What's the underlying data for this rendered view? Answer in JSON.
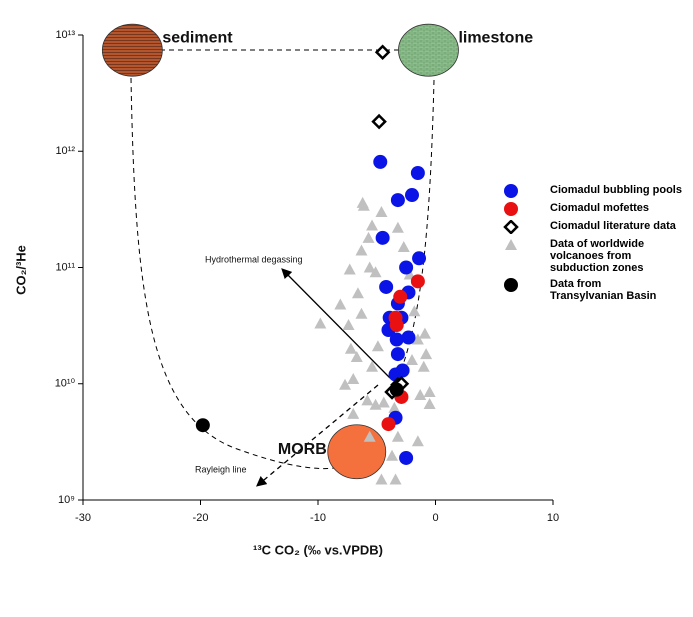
{
  "chart_data": {
    "type": "scatter",
    "x_label": "¹³C CO₂ (‰ vs.VPDB)",
    "y_label": "CO₂/³He",
    "xlim": [
      -30,
      10
    ],
    "xticks": [
      -30,
      -20,
      -10,
      0,
      10
    ],
    "ylim": [
      1000000000,
      10000000000000
    ],
    "yticks": [
      {
        "value": 1000000000,
        "label": "10⁹"
      },
      {
        "value": 10000000000,
        "label": "10¹⁰"
      },
      {
        "value": 100000000000,
        "label": "10¹¹"
      },
      {
        "value": 1000000000000,
        "label": "10¹²"
      },
      {
        "value": 10000000000000,
        "label": "10¹³"
      }
    ],
    "log_y": true,
    "series": [
      {
        "name": "Data of worldwide volcanoes from subduction zones",
        "color": "#c0c0c0",
        "marker": "triangle",
        "x": [
          -9.8,
          -7.4,
          -7.3,
          -7.2,
          -7.0,
          -6.7,
          -6.6,
          -6.3,
          -6.3,
          -6.2,
          -6.1,
          -5.7,
          -5.6,
          -5.4,
          -5.1,
          -4.9,
          -4.6,
          -5.8,
          -5.6,
          -5.4,
          -5.1,
          -4.6,
          -3.4,
          -3.7,
          -3.2,
          -4.4,
          -3.5,
          -3.2,
          -2.7,
          -2.2,
          -1.8,
          -1.5,
          -0.9,
          -0.8,
          -1.3,
          -0.5,
          -0.5,
          -1.5,
          -8.1,
          -7.7,
          -7.0,
          -2.0,
          -1.0
        ],
        "values": [
          33000000000,
          32000000000,
          96000000000,
          20000000000,
          11000000000,
          17000000000,
          60000000000,
          40000000000,
          140000000000,
          360000000000,
          340000000000,
          180000000000,
          100000000000,
          230000000000,
          91000000000,
          21000000000,
          300000000000,
          7200000000,
          3500000000,
          14000000000,
          6600000000,
          1500000000,
          1500000000,
          2400000000,
          3500000000,
          6900000000,
          6200000000,
          220000000000,
          150000000000,
          87000000000,
          42000000000,
          24000000000,
          27000000000,
          18000000000,
          8000000000,
          8500000000,
          6700000000,
          3200000000,
          48000000000,
          9800000000,
          5500000000,
          16000000000,
          14000000000
        ]
      },
      {
        "name": "Ciomadul bubbling pools",
        "color": "#0a14e6",
        "marker": "circle",
        "x": [
          -4.7,
          -1.5,
          -3.2,
          -2.0,
          -4.5,
          -1.4,
          -2.5,
          -4.2,
          -2.3,
          -3.2,
          -3.9,
          -2.9,
          -4.0,
          -2.3,
          -3.3,
          -3.2,
          -3.4,
          -2.8,
          -3.4,
          -2.5
        ],
        "values": [
          810000000000,
          650000000000,
          380000000000,
          420000000000,
          180000000000,
          120000000000,
          100000000000,
          68000000000,
          61000000000,
          49000000000,
          37000000000,
          37000000000,
          29000000000,
          25000000000,
          24000000000,
          18000000000,
          12000000000,
          13000000000,
          5100000000,
          2300000000
        ]
      },
      {
        "name": "Ciomadul mofettes",
        "color": "#e81010",
        "marker": "circle",
        "x": [
          -1.5,
          -3.0,
          -3.4,
          -3.3,
          -2.9,
          -4.0
        ],
        "values": [
          76000000000,
          56000000000,
          37000000000,
          32000000000,
          7700000000,
          4500000000
        ]
      },
      {
        "name": "Ciomadul literature data",
        "color": "#000000",
        "marker": "diamond",
        "x": [
          -4.5,
          -4.8,
          -3.2,
          -3.7,
          -2.9
        ],
        "values": [
          7100000000000,
          1800000000000,
          9800000000,
          8500000000,
          10000000000
        ]
      },
      {
        "name": "Data from Transylvanian Basin",
        "color": "#000000",
        "marker": "circle",
        "x": [
          -19.8,
          -3.3
        ],
        "values": [
          4400000000,
          8900000000
        ]
      }
    ],
    "legend_order": [
      1,
      2,
      3,
      0,
      4
    ],
    "end_members": [
      {
        "label": "sediment",
        "x": -25.8,
        "y": 7400000000000,
        "color": "#b5552e"
      },
      {
        "label": "limestone",
        "x": -0.6,
        "y": 7400000000000,
        "color": "#8fbf8f"
      },
      {
        "label": "MORB",
        "x": -6.7,
        "y": 2600000000,
        "color": "#f4703c"
      }
    ],
    "annotations": [
      "Hydrothermal degassing",
      "Rayleigh line"
    ]
  }
}
